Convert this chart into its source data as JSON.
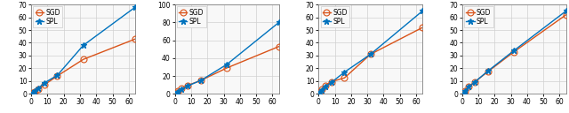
{
  "panels": [
    {
      "xlim": [
        0,
        64
      ],
      "ylim": [
        0,
        70
      ],
      "yticks": [
        0,
        10,
        20,
        30,
        40,
        50,
        60,
        70
      ],
      "xticks": [
        0,
        10,
        20,
        30,
        40,
        50,
        60
      ],
      "xdata": [
        1,
        2,
        4,
        8,
        16,
        32,
        64
      ],
      "spl": [
        1.0,
        2.0,
        4.0,
        8.5,
        14.5,
        38.0,
        68.0
      ],
      "sgd": [
        0.8,
        1.8,
        3.5,
        7.0,
        14.0,
        27.0,
        43.0
      ]
    },
    {
      "xlim": [
        0,
        64
      ],
      "ylim": [
        0,
        100
      ],
      "yticks": [
        0,
        20,
        40,
        60,
        80,
        100
      ],
      "xticks": [
        0,
        10,
        20,
        30,
        40,
        50,
        60
      ],
      "xdata": [
        1,
        2,
        4,
        8,
        16,
        32,
        64
      ],
      "spl": [
        1.0,
        2.5,
        5.0,
        9.0,
        15.0,
        33.0,
        80.0
      ],
      "sgd": [
        1.5,
        3.0,
        6.0,
        9.5,
        15.0,
        29.0,
        53.0
      ]
    },
    {
      "xlim": [
        0,
        64
      ],
      "ylim": [
        0,
        70
      ],
      "yticks": [
        0,
        10,
        20,
        30,
        40,
        50,
        60,
        70
      ],
      "xticks": [
        0,
        10,
        20,
        30,
        40,
        50,
        60
      ],
      "xdata": [
        1,
        2,
        4,
        8,
        16,
        32,
        64
      ],
      "spl": [
        1.5,
        3.0,
        5.5,
        9.0,
        17.0,
        31.0,
        65.0
      ],
      "sgd": [
        1.5,
        3.5,
        6.5,
        9.5,
        12.5,
        31.0,
        52.0
      ]
    },
    {
      "xlim": [
        0,
        64
      ],
      "ylim": [
        0,
        70
      ],
      "yticks": [
        0,
        10,
        20,
        30,
        40,
        50,
        60,
        70
      ],
      "xticks": [
        0,
        10,
        20,
        30,
        40,
        50,
        60
      ],
      "xdata": [
        1,
        2,
        4,
        8,
        16,
        32,
        64
      ],
      "spl": [
        1.0,
        2.5,
        5.5,
        9.5,
        18.0,
        34.0,
        65.0
      ],
      "sgd": [
        1.0,
        2.5,
        5.5,
        9.5,
        17.5,
        33.0,
        62.0
      ]
    }
  ],
  "spl_color": "#0072BD",
  "sgd_color": "#D95319",
  "spl_marker": "*",
  "sgd_marker": "o",
  "linewidth": 1.0,
  "markersize_spl": 4.5,
  "markersize_sgd": 5.0,
  "legend_fontsize": 5.5,
  "tick_fontsize": 5.5,
  "bg_color": "#f8f8f8"
}
